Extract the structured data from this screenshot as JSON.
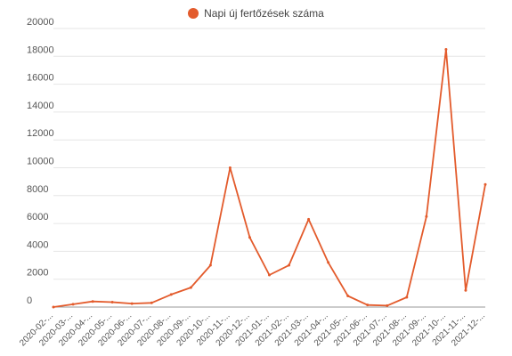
{
  "chart_data": {
    "type": "line",
    "legend": {
      "label": "Napi új fertőzések száma",
      "position": "top-center"
    },
    "color": "#e35b2c",
    "grid": true,
    "ylim": [
      0,
      20000
    ],
    "y_ticks": [
      "0",
      "2000",
      "4000",
      "6000",
      "8000",
      "10000",
      "12000",
      "14000",
      "16000",
      "18000",
      "20000"
    ],
    "x_ticks": [
      "2020-02-...",
      "2020-03-...",
      "2020-04-...",
      "2020-05-...",
      "2020-06-...",
      "2020-07-...",
      "2020-08-...",
      "2020-09-...",
      "2020-10-...",
      "2020-11-...",
      "2020-12-...",
      "2021-01-...",
      "2021-02-...",
      "2021-03-...",
      "2021-04-...",
      "2021-05-...",
      "2021-06-...",
      "2021-07-...",
      "2021-08-...",
      "2021-09-...",
      "2021-10-...",
      "2021-11-...",
      "2021-12-..."
    ],
    "series": [
      {
        "name": "Napi új fertőzések száma",
        "x": [
          "2020-02",
          "2020-03",
          "2020-04",
          "2020-05",
          "2020-06",
          "2020-07",
          "2020-08",
          "2020-09",
          "2020-10",
          "2020-11",
          "2020-12",
          "2021-01",
          "2021-02",
          "2021-03",
          "2021-04",
          "2021-05",
          "2021-06",
          "2021-07",
          "2021-08",
          "2021-09",
          "2021-10",
          "2021-11",
          "2021-12"
        ],
        "values": [
          0,
          200,
          400,
          350,
          250,
          300,
          900,
          1400,
          3000,
          10000,
          5000,
          2300,
          3000,
          6300,
          3200,
          800,
          150,
          100,
          700,
          6500,
          18500,
          1200,
          8800
        ]
      }
    ]
  }
}
